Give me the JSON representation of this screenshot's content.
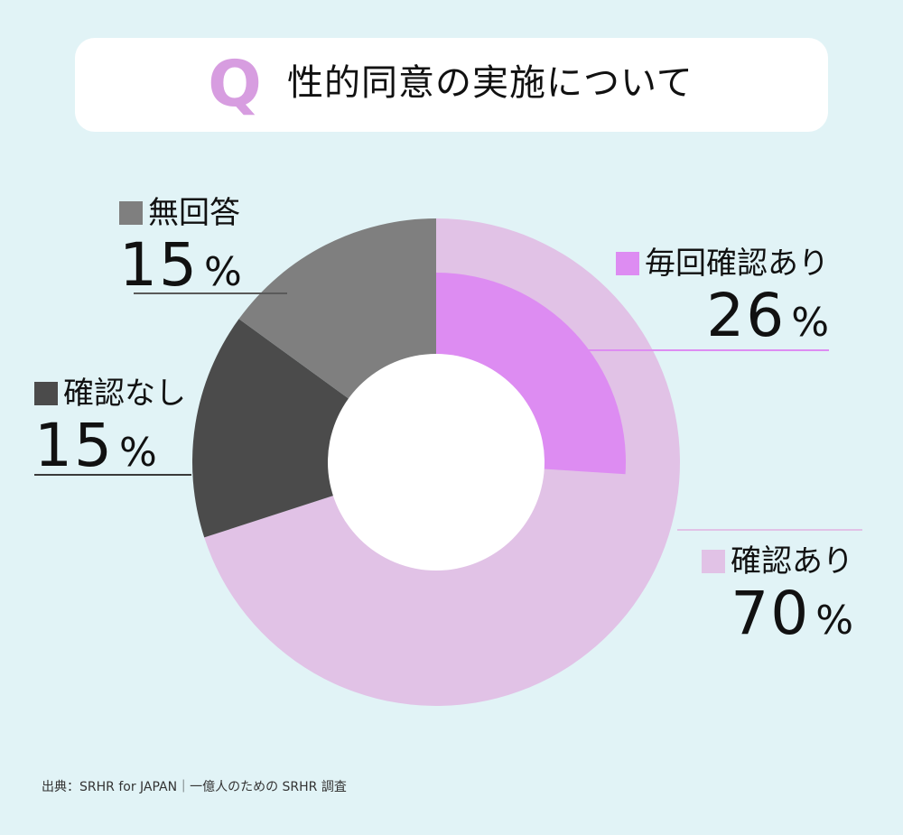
{
  "title": "性的同意の実施について",
  "title_mark": "Q",
  "source": "出典：SRHR for JAPAN｜一億人のための SRHR 調査",
  "colors": {
    "background": "#e1f3f6",
    "q_mark": "#d79de0"
  },
  "chart_data": {
    "type": "pie",
    "style": "donut",
    "unit": "%",
    "slices": [
      {
        "label": "確認あり",
        "value": 70,
        "color": "#e1c2e6"
      },
      {
        "label": "確認なし",
        "value": 15,
        "color": "#4b4b4b"
      },
      {
        "label": "無回答",
        "value": 15,
        "color": "#7f7f7f"
      }
    ],
    "sub_slice": {
      "label": "毎回確認あり",
      "value": 26,
      "color": "#dd8cf2",
      "parent": "確認あり"
    },
    "legend": "labels beside slices"
  }
}
